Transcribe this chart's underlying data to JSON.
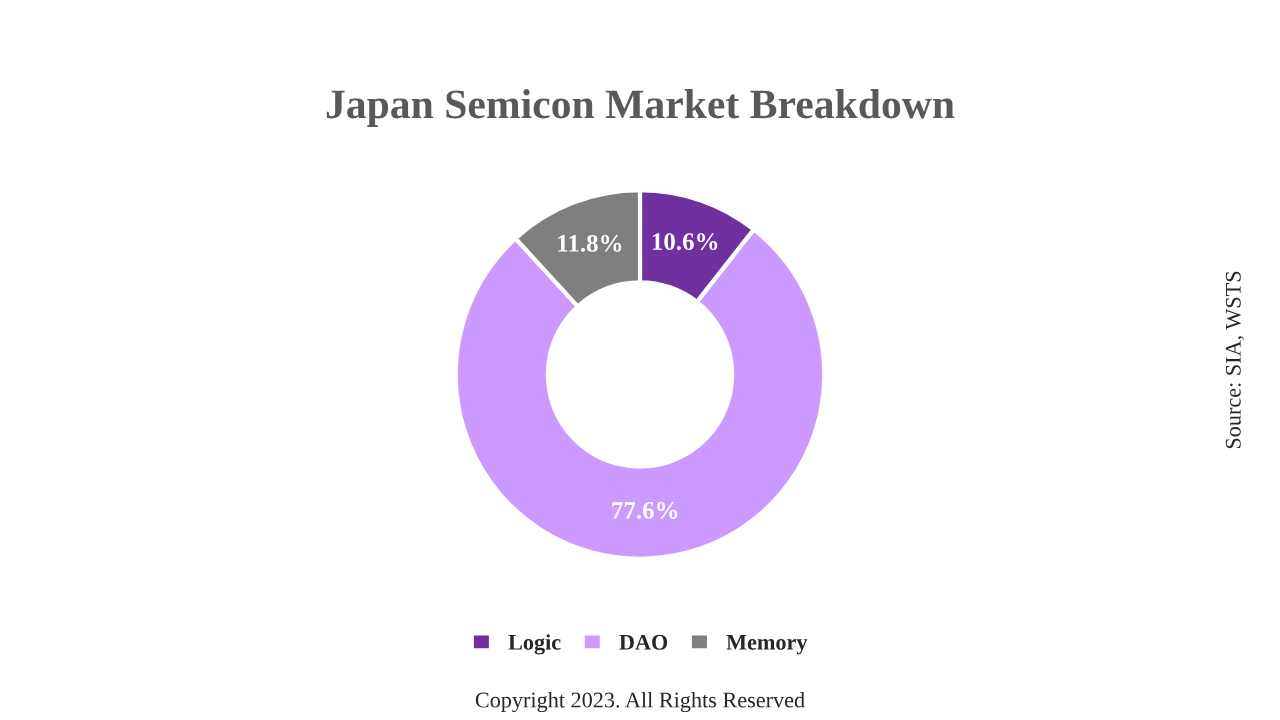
{
  "chart_data": {
    "type": "donut",
    "title": "Japan Semicon Market Breakdown",
    "categories": [
      "Logic",
      "DAO",
      "Memory"
    ],
    "values": [
      10.6,
      77.6,
      11.8
    ],
    "colors": [
      "#7030a0",
      "#cc99ff",
      "#7f7f7f"
    ],
    "value_labels": [
      "10.6%",
      "77.6%",
      "11.8%"
    ],
    "legend": "bottom",
    "annotations": [
      "Source: SIA, WSTS",
      "Copyright 2023. All Rights Reserved"
    ]
  }
}
